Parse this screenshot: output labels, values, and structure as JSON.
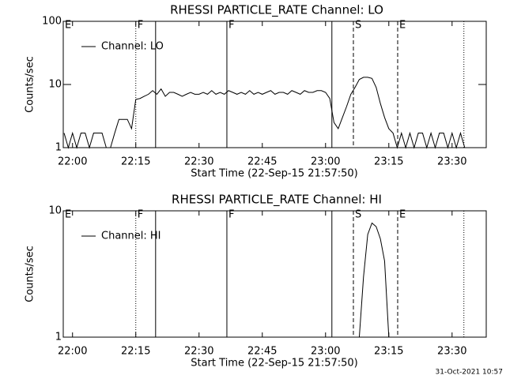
{
  "chart_data": [
    {
      "type": "line",
      "title": "RHESSI PARTICLE_RATE Channel: LO",
      "xlabel": "Start Time (22-Sep-15 21:57:50)",
      "ylabel": "Counts/sec",
      "log_y": true,
      "legend": "upper left",
      "xlim": [
        -2.2,
        98.1
      ],
      "ylim": [
        1,
        100
      ],
      "xticks": [
        {
          "value": 0,
          "label": "22:00"
        },
        {
          "value": 15,
          "label": "22:15"
        },
        {
          "value": 30,
          "label": "22:30"
        },
        {
          "value": 45,
          "label": "22:45"
        },
        {
          "value": 60,
          "label": "23:00"
        },
        {
          "value": 75,
          "label": "23:15"
        },
        {
          "value": 90,
          "label": "23:30"
        }
      ],
      "yticks": [
        1,
        10,
        100
      ],
      "markers": [
        {
          "x": 15,
          "style": "dotted"
        },
        {
          "x": 19.7,
          "style": "solid"
        },
        {
          "x": 36.6,
          "style": "solid"
        },
        {
          "x": 61.5,
          "style": "solid"
        },
        {
          "x": 66.6,
          "style": "dashed"
        },
        {
          "x": 77.1,
          "style": "dashed"
        },
        {
          "x": 92.8,
          "style": "dotted"
        }
      ],
      "flags": [
        {
          "x": -2.2,
          "text": "E"
        },
        {
          "x": 15,
          "text": "F"
        },
        {
          "x": 36.6,
          "text": "F"
        },
        {
          "x": 66.6,
          "text": "S"
        },
        {
          "x": 77.1,
          "text": "E"
        }
      ],
      "x": [
        -2,
        -1,
        0,
        1,
        2,
        3,
        4,
        5,
        6,
        7,
        8,
        9,
        10,
        11,
        12,
        13,
        14,
        15,
        16,
        17,
        18,
        19,
        20,
        21,
        22,
        23,
        24,
        25,
        26,
        27,
        28,
        29,
        30,
        31,
        32,
        33,
        34,
        35,
        36,
        37,
        38,
        39,
        40,
        41,
        42,
        43,
        44,
        45,
        46,
        47,
        48,
        49,
        50,
        51,
        52,
        53,
        54,
        55,
        56,
        57,
        58,
        59,
        60,
        61,
        62,
        63,
        64,
        65,
        66,
        67,
        68,
        69,
        70,
        71,
        72,
        73,
        74,
        75,
        76,
        77,
        78,
        79,
        80,
        81,
        82,
        83,
        84,
        85,
        86,
        87,
        88,
        89,
        90,
        91,
        92,
        93
      ],
      "series": [
        {
          "name": "Channel: LO",
          "color": "#000000",
          "values": [
            1.7,
            1,
            1.7,
            1,
            1.7,
            1.7,
            1,
            1.7,
            1.7,
            1.7,
            1,
            1,
            1.7,
            2.8,
            2.8,
            2.8,
            2,
            5.8,
            6,
            6.5,
            7,
            8,
            7,
            8.5,
            6.5,
            7.5,
            7.5,
            7,
            6.5,
            7,
            7.5,
            7,
            7,
            7.5,
            7,
            8,
            7,
            7.5,
            7,
            8,
            7.5,
            7,
            7.5,
            7,
            8,
            7,
            7.5,
            7,
            7.5,
            8,
            7,
            7.5,
            7.5,
            7,
            8,
            7.5,
            7,
            8,
            7.5,
            7.5,
            8,
            8,
            7.5,
            6,
            2.5,
            2,
            3,
            4.5,
            7,
            9,
            12,
            13,
            13,
            12.5,
            9,
            5,
            3,
            2,
            1.7,
            1,
            1.7,
            1,
            1.7,
            1,
            1.7,
            1.7,
            1,
            1.7,
            1,
            1.7,
            1.7,
            1,
            1.7,
            1,
            1.7,
            1
          ]
        }
      ]
    },
    {
      "type": "line",
      "title": "RHESSI PARTICLE_RATE Channel: HI",
      "xlabel": "Start Time (22-Sep-15 21:57:50)",
      "ylabel": "Counts/sec",
      "log_y": true,
      "legend": "upper left",
      "xlim": [
        -2.2,
        98.1
      ],
      "ylim": [
        1,
        10
      ],
      "xticks": [
        {
          "value": 0,
          "label": "22:00"
        },
        {
          "value": 15,
          "label": "22:15"
        },
        {
          "value": 30,
          "label": "22:30"
        },
        {
          "value": 45,
          "label": "22:45"
        },
        {
          "value": 60,
          "label": "23:00"
        },
        {
          "value": 75,
          "label": "23:15"
        },
        {
          "value": 90,
          "label": "23:30"
        }
      ],
      "yticks": [
        1,
        10
      ],
      "markers": [
        {
          "x": 15,
          "style": "dotted"
        },
        {
          "x": 19.7,
          "style": "solid"
        },
        {
          "x": 36.6,
          "style": "solid"
        },
        {
          "x": 61.5,
          "style": "solid"
        },
        {
          "x": 66.6,
          "style": "dashed"
        },
        {
          "x": 77.1,
          "style": "dashed"
        },
        {
          "x": 92.8,
          "style": "dotted"
        }
      ],
      "flags": [
        {
          "x": -2.2,
          "text": "E"
        },
        {
          "x": 15,
          "text": "F"
        },
        {
          "x": 36.6,
          "text": "F"
        },
        {
          "x": 66.6,
          "text": "S"
        },
        {
          "x": 77.1,
          "text": "E"
        }
      ],
      "x": [
        68,
        69,
        70,
        71,
        72,
        73,
        74,
        75
      ],
      "series": [
        {
          "name": "Channel: HI",
          "color": "#000000",
          "values": [
            1,
            3,
            6.5,
            8,
            7.5,
            6,
            4,
            1
          ]
        }
      ]
    }
  ],
  "footer": "31-Oct-2021 10:57"
}
